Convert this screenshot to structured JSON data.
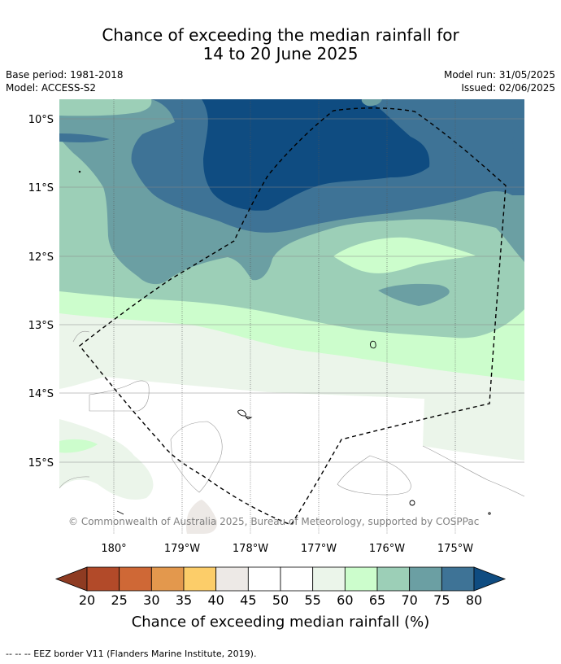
{
  "title": {
    "line1": "Chance of exceeding the median rainfall for",
    "line2": "14 to 20 June 2025"
  },
  "meta_left": {
    "base_period": "Base period: 1981-2018",
    "model": "Model: ACCESS-S2"
  },
  "meta_right": {
    "model_run": "Model run: 31/05/2025",
    "issued": "Issued: 02/06/2025"
  },
  "map": {
    "lat_labels": [
      "10°S",
      "11°S",
      "12°S",
      "13°S",
      "14°S",
      "15°S"
    ],
    "lon_labels": [
      "180°",
      "179°W",
      "178°W",
      "177°W",
      "176°W",
      "175°W"
    ],
    "copyright": "© Commonwealth of Australia 2025, Bureau of Meteorology, supported by COSPPac"
  },
  "legend": {
    "title": "Chance of exceeding median rainfall (%)",
    "ticks": [
      "20",
      "25",
      "30",
      "35",
      "40",
      "45",
      "50",
      "55",
      "60",
      "65",
      "70",
      "75",
      "80"
    ],
    "low_arrow_color": "#8e3b22",
    "high_arrow_color": "#0f4c81",
    "bin_colors": [
      "#b24a29",
      "#cf6836",
      "#e3984d",
      "#fccd69",
      "#ede9e6",
      "#ffffff",
      "#ffffff",
      "#ebf5ea",
      "#ccfdcc",
      "#9ccfb7",
      "#6b9fa3",
      "#3e7396"
    ]
  },
  "footnote": "--  --  -- EEZ border V11 (Flanders Marine Institute, 2019)."
}
